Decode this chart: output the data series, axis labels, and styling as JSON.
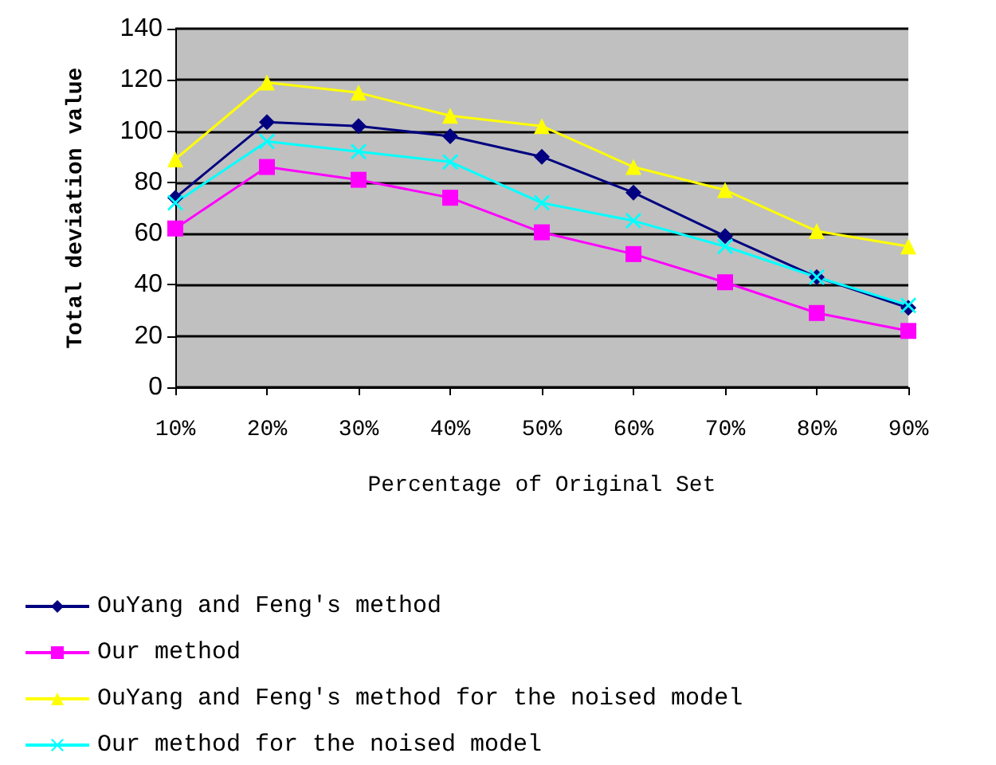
{
  "chart_data": {
    "type": "line",
    "xlabel": "Percentage of Original Set",
    "ylabel": "Total deviation value",
    "categories": [
      "10%",
      "20%",
      "30%",
      "40%",
      "50%",
      "60%",
      "70%",
      "80%",
      "90%"
    ],
    "series": [
      {
        "name": "OuYang and Feng's method",
        "color": "#000080",
        "marker": "diamond",
        "values": [
          74,
          103.5,
          102,
          98,
          90,
          76,
          59,
          43,
          31
        ]
      },
      {
        "name": "Our method",
        "color": "#ff00ff",
        "marker": "square",
        "values": [
          62,
          86,
          81,
          74,
          60.5,
          52,
          41,
          29,
          22
        ]
      },
      {
        "name": "OuYang and Feng's method for the noised model",
        "color": "#ffff00",
        "marker": "triangle",
        "values": [
          89,
          119,
          115,
          106,
          102,
          86,
          77,
          61,
          55
        ]
      },
      {
        "name": "Our method for the noised model",
        "color": "#00ffff",
        "marker": "cross",
        "values": [
          72,
          96,
          92,
          88,
          72,
          65,
          55,
          43,
          32
        ]
      }
    ],
    "ylim": [
      0,
      140
    ],
    "yticks": [
      0,
      20,
      40,
      60,
      80,
      100,
      120,
      140
    ],
    "grid": "y",
    "legend": "bottom"
  }
}
